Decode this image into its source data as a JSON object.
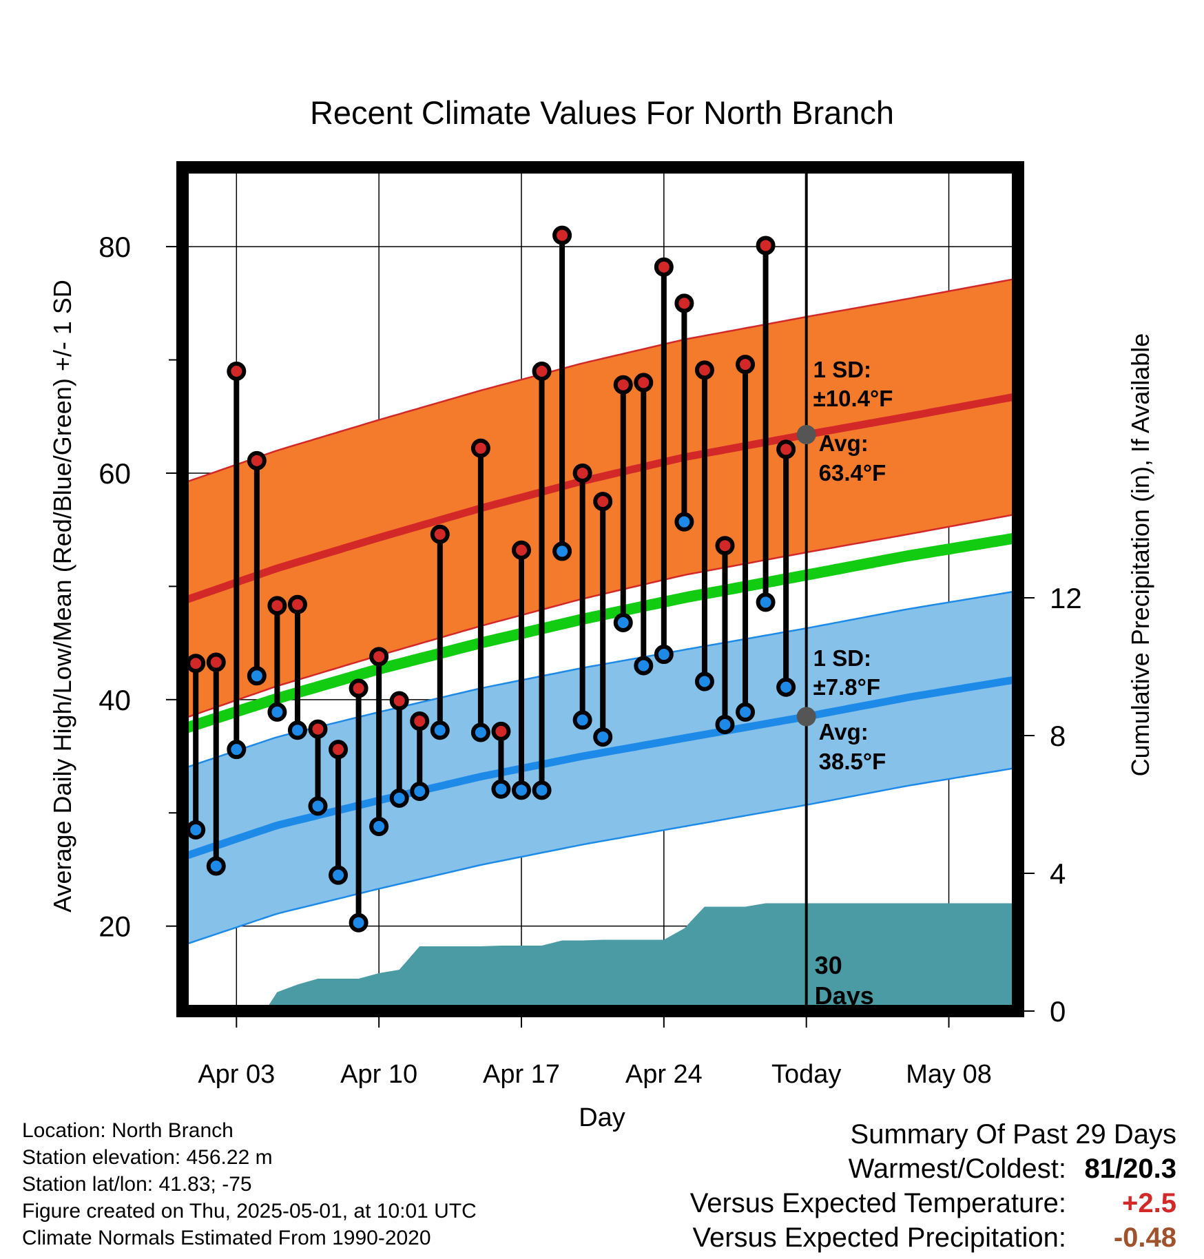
{
  "chart_data": {
    "type": "line",
    "title": "Recent Climate Values For North Branch",
    "xlabel": "Day",
    "ylabel": "Average Daily High/Low/Mean (Red/Blue/Green) +/- 1 SD",
    "y2label": "Cumulative Precipitation (in), If Available",
    "xlim": [
      0.35,
      41.4
    ],
    "ylim": [
      12.5,
      87
    ],
    "y2lim": [
      0,
      24.5
    ],
    "yticks": [
      20,
      40,
      60,
      80
    ],
    "y2ticks": [
      0,
      4,
      8,
      12
    ],
    "x_ticks": [
      {
        "x": 3,
        "label": "Apr 03"
      },
      {
        "x": 10,
        "label": "Apr 10"
      },
      {
        "x": 17,
        "label": "Apr 17"
      },
      {
        "x": 24,
        "label": "Apr 24"
      },
      {
        "x": 31,
        "label": "Today"
      },
      {
        "x": 38,
        "label": "May 08"
      }
    ],
    "today_x": 31,
    "today_label": [
      "30",
      "Days"
    ],
    "normals": {
      "x": [
        0.35,
        5,
        10,
        15,
        20,
        25,
        31,
        36,
        41.4
      ],
      "high_mean": [
        48.7,
        51.6,
        54.3,
        56.9,
        59.3,
        61.4,
        63.4,
        65.0,
        66.8
      ],
      "high_sd": 10.4,
      "low_mean": [
        26.1,
        28.9,
        31.1,
        33.2,
        35.0,
        36.6,
        38.5,
        40.2,
        41.8
      ],
      "low_sd": 7.8,
      "mean": [
        37.4,
        40.1,
        42.7,
        45.0,
        47.1,
        49.0,
        51.0,
        52.7,
        54.3
      ]
    },
    "series": [
      {
        "name": "Daily High",
        "x": [
          1,
          2,
          3,
          4,
          5,
          6,
          7,
          8,
          9,
          10,
          11,
          12,
          13,
          15,
          16,
          17,
          18,
          19,
          20,
          21,
          22,
          23,
          24,
          25,
          26,
          27,
          28,
          29,
          30
        ],
        "values": [
          43.2,
          43.3,
          69,
          61.1,
          48.3,
          48.4,
          37.4,
          35.6,
          41,
          43.8,
          39.9,
          38.1,
          54.6,
          62.2,
          37.2,
          53.2,
          69,
          81,
          60,
          57.5,
          67.8,
          68,
          78.2,
          75,
          69.1,
          53.6,
          69.6,
          80.1,
          62.1
        ]
      },
      {
        "name": "Daily Low",
        "x": [
          1,
          2,
          3,
          4,
          5,
          6,
          7,
          8,
          9,
          10,
          11,
          12,
          13,
          15,
          16,
          17,
          18,
          19,
          20,
          21,
          22,
          23,
          24,
          25,
          26,
          27,
          28,
          29,
          30
        ],
        "values": [
          28.5,
          25.3,
          35.6,
          42.1,
          38.9,
          37.3,
          30.6,
          24.5,
          20.3,
          28.8,
          31.3,
          31.9,
          37.3,
          37.1,
          32.1,
          32,
          32,
          53.1,
          38.2,
          36.7,
          46.8,
          43,
          44,
          55.7,
          41.6,
          37.8,
          38.9,
          48.6,
          41.1
        ]
      },
      {
        "name": "Cumulative Precipitation",
        "x": [
          0.35,
          4.4,
          5,
          6,
          7,
          8,
          9,
          10,
          11,
          12,
          13,
          14,
          15,
          16,
          17,
          18,
          19,
          20,
          21,
          22,
          23,
          24,
          25,
          26,
          27,
          28,
          29,
          30,
          31,
          41.4
        ],
        "values": [
          0,
          0,
          0.55,
          0.77,
          0.94,
          0.94,
          0.94,
          1.1,
          1.2,
          1.88,
          1.88,
          1.88,
          1.88,
          1.9,
          1.9,
          1.9,
          2.05,
          2.05,
          2.07,
          2.07,
          2.07,
          2.07,
          2.4,
          3.03,
          3.03,
          3.03,
          3.13,
          3.13,
          3.13,
          3.13
        ]
      }
    ],
    "annotations": {
      "high": {
        "sd_label": "1 SD:",
        "sd_value": "±10.4°F",
        "avg_label": "Avg:",
        "avg_value": "63.4°F",
        "value": 63.4
      },
      "low": {
        "sd_label": "1 SD:",
        "sd_value": "±7.8°F",
        "avg_label": "Avg:",
        "avg_value": "38.5°F",
        "value": 38.5
      }
    },
    "colors": {
      "high_band": "#f47a2c",
      "high_edge": "#d22828",
      "high_line": "#d22828",
      "low_band": "#85c1e8",
      "low_edge": "#1e8ae8",
      "low_line": "#1e8ae8",
      "mean_line": "#11cc11",
      "precip": "#4a9ba4",
      "annotation": "#555555"
    }
  },
  "footer": {
    "location": "Location: North Branch",
    "elevation": "Station elevation: 456.22 m",
    "latlon": "Station lat/lon: 41.83; -75",
    "created": "Figure created on Thu, 2025-05-01, at 10:01 UTC",
    "normals": "Climate Normals Estimated From 1990-2020"
  },
  "summary": {
    "title": "Summary Of Past 29 Days",
    "warmest_label": "Warmest/Coldest:",
    "warmest_value": "81/20.3",
    "temp_label": "Versus Expected Temperature:",
    "temp_value": "+2.5",
    "temp_color": "#d22828",
    "precip_label": "Versus Expected Precipitation:",
    "precip_value": "-0.48",
    "precip_color": "#a0522d"
  }
}
